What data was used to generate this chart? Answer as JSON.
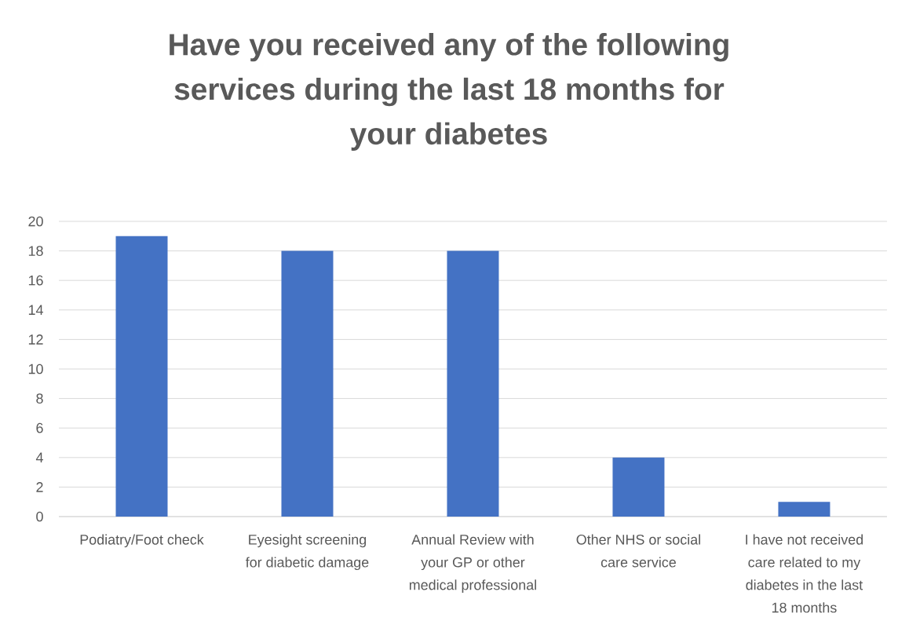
{
  "chart_data": {
    "type": "bar",
    "title": "Have you received any of the following services during the last 18 months for your diabetes",
    "categories": [
      "Podiatry/Foot check",
      "Eyesight screening for diabetic damage",
      "Annual Review with your GP or other medical professional",
      "Other NHS or social care service",
      "I have not received care related to my diabetes in the last 18 months"
    ],
    "values": [
      19,
      18,
      18,
      4,
      1
    ],
    "color": "#4472c4",
    "ylim": [
      0,
      20
    ],
    "yticks": [
      0,
      2,
      4,
      6,
      8,
      10,
      12,
      14,
      16,
      18,
      20
    ],
    "grid": "y"
  }
}
